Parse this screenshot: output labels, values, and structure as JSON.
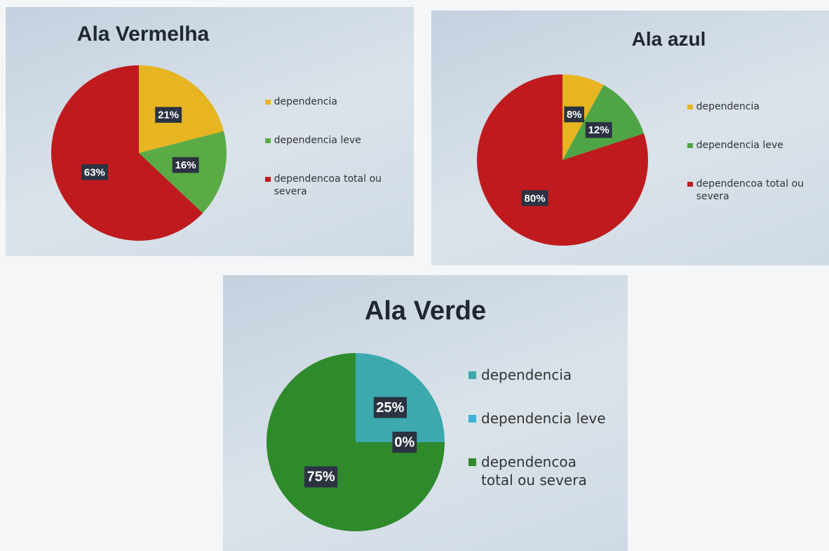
{
  "chart_data": [
    {
      "type": "pie",
      "title": "Ala Vermelha",
      "categories": [
        "dependencia",
        "dependencia leve",
        "dependencoa total ou severa"
      ],
      "values": [
        21,
        16,
        63
      ],
      "value_labels": [
        "21%",
        "16%",
        "63%"
      ],
      "colors": [
        "#e6b521",
        "#5aab46",
        "#bf1b1e"
      ]
    },
    {
      "type": "pie",
      "title": "Ala azul",
      "categories": [
        "dependencia",
        "dependencia leve",
        "dependencoa total ou severa"
      ],
      "values": [
        8,
        12,
        80
      ],
      "value_labels": [
        "8%",
        "12%",
        "80%"
      ],
      "colors": [
        "#e6b521",
        "#4fa546",
        "#bf1b1e"
      ]
    },
    {
      "type": "pie",
      "title": "Ala Verde",
      "categories": [
        "dependencia",
        "dependencia leve",
        "dependencoa total ou severa"
      ],
      "values": [
        25,
        0,
        75
      ],
      "value_labels": [
        "25%",
        "0%",
        "75%"
      ],
      "colors": [
        "#3ba9ad",
        "#3ab2d9",
        "#2f8a2c"
      ]
    }
  ]
}
